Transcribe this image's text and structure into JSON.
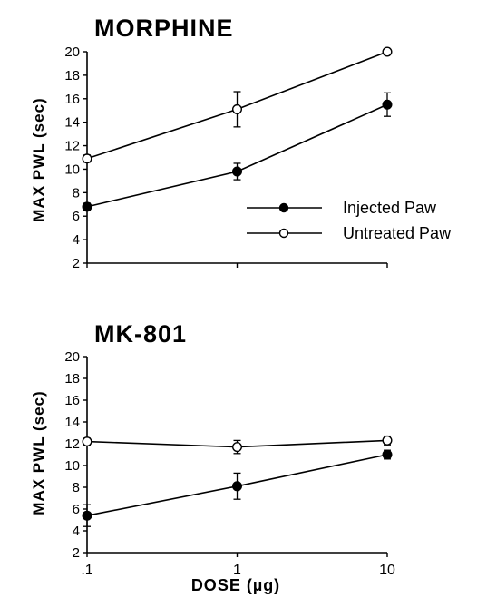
{
  "chart_data": [
    {
      "type": "line",
      "title": "MORPHINE",
      "ylabel": "MAX PWL (sec)",
      "xlabel": "",
      "x_scale": "log",
      "x": [
        0.1,
        1,
        10
      ],
      "xticklabels": [
        ".1",
        "1",
        "10"
      ],
      "xticks_shown": false,
      "ylim": [
        2,
        20
      ],
      "yticks": [
        2,
        4,
        6,
        8,
        10,
        12,
        14,
        16,
        18,
        20
      ],
      "grid": false,
      "legend_position": "inside-right",
      "series": [
        {
          "name": "Injected Paw",
          "marker": "filled-circle",
          "values": [
            6.8,
            9.8,
            15.5
          ],
          "error": [
            0.3,
            0.7,
            1.0
          ]
        },
        {
          "name": "Untreated Paw",
          "marker": "open-circle",
          "values": [
            10.9,
            15.1,
            20.0
          ],
          "error": [
            0.3,
            1.5,
            0
          ]
        }
      ]
    },
    {
      "type": "line",
      "title": "MK-801",
      "ylabel": "MAX PWL (sec)",
      "xlabel": "DOSE (µg)",
      "x_scale": "log",
      "x": [
        0.1,
        1,
        10
      ],
      "xticklabels": [
        ".1",
        "1",
        "10"
      ],
      "xticks_shown": true,
      "ylim": [
        2,
        20
      ],
      "yticks": [
        2,
        4,
        6,
        8,
        10,
        12,
        14,
        16,
        18,
        20
      ],
      "grid": false,
      "series": [
        {
          "name": "Injected Paw",
          "marker": "filled-circle",
          "values": [
            5.4,
            8.1,
            11.0
          ],
          "error": [
            1.0,
            1.2,
            0.4
          ]
        },
        {
          "name": "Untreated Paw",
          "marker": "open-circle",
          "values": [
            12.2,
            11.7,
            12.3
          ],
          "error": [
            0.3,
            0.6,
            0.4
          ]
        }
      ]
    }
  ]
}
